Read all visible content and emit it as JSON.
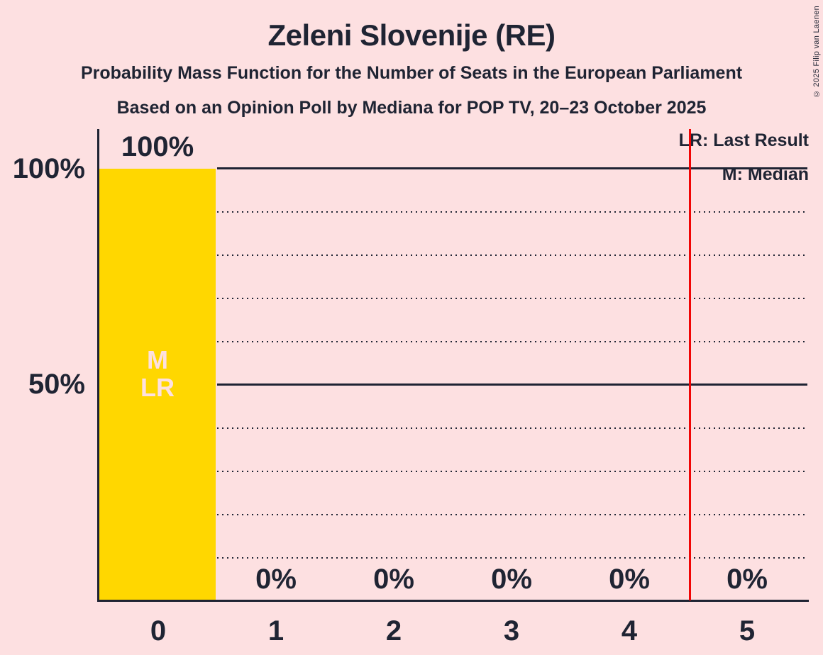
{
  "title": "Zeleni Slovenije (RE)",
  "subtitle": "Probability Mass Function for the Number of Seats in the European Parliament",
  "source_line": "Based on an Opinion Poll by Mediana for POP TV, 20–23 October 2025",
  "copyright": "© 2025 Filip van Laenen",
  "legend": {
    "last_result": "LR: Last Result",
    "median": "M: Median"
  },
  "colors": {
    "background": "#fde0e1",
    "bar": "#ffd700",
    "text": "#1f2433",
    "threshold_line": "#f10404"
  },
  "chart_data": {
    "type": "bar",
    "title": "Zeleni Slovenije (RE)",
    "categories": [
      "0",
      "1",
      "2",
      "3",
      "4",
      "5"
    ],
    "values": [
      100,
      0,
      0,
      0,
      0,
      0
    ],
    "value_labels": [
      "100%",
      "0%",
      "0%",
      "0%",
      "0%",
      "0%"
    ],
    "ylim": [
      0,
      100
    ],
    "ytick_labels": [
      "100%",
      "50%"
    ],
    "grid": "dotted every 10%, solid at 50% and 100%",
    "legend_position": "top-right",
    "red_line_x": 4.5,
    "median_seats": 0,
    "last_result_seats": 0,
    "annotations": {
      "median_marker": "M",
      "last_result_marker": "LR"
    }
  }
}
